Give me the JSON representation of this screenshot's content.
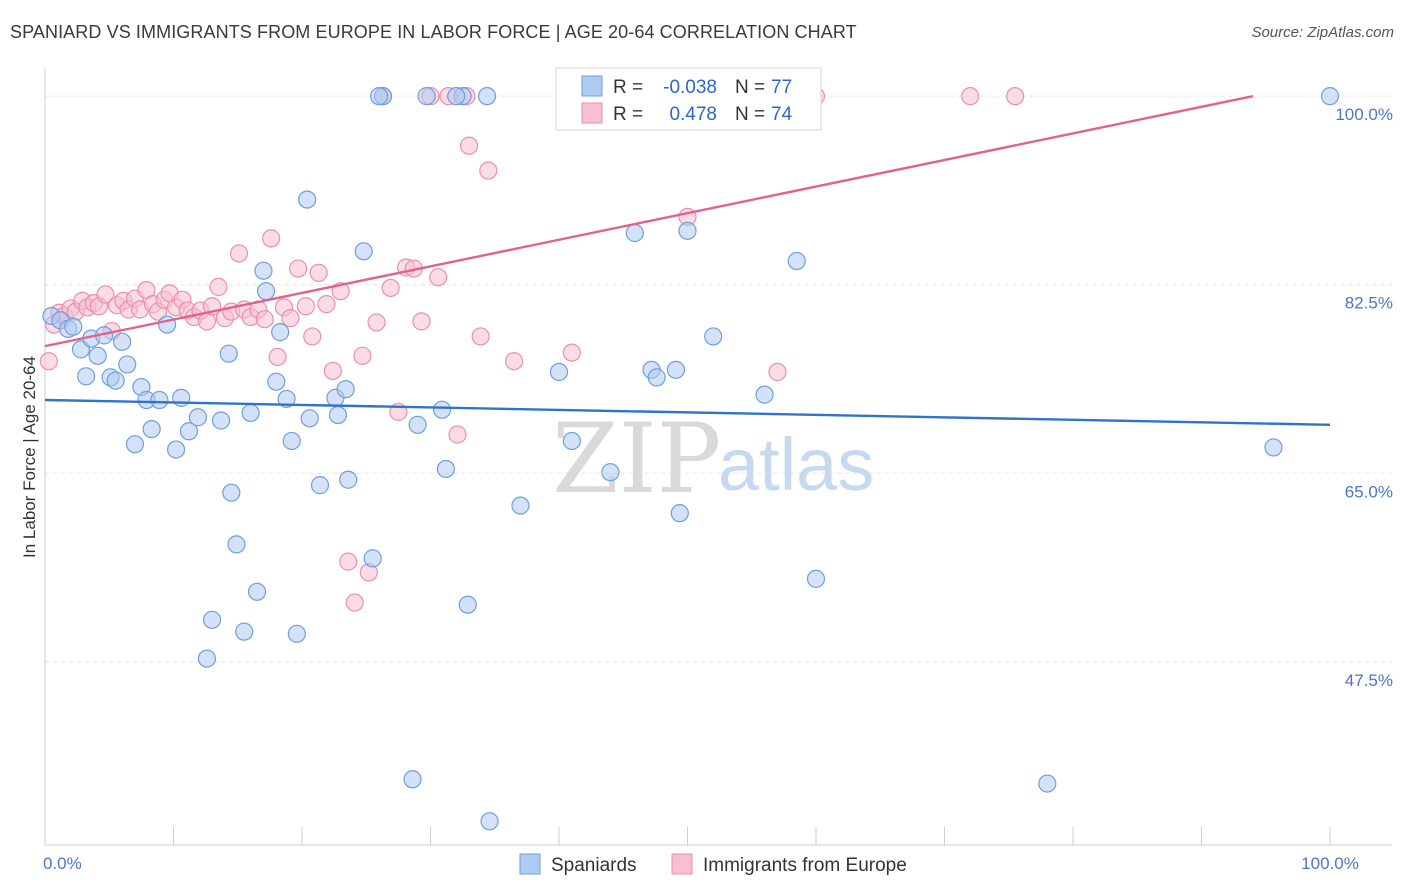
{
  "title": "SPANIARD VS IMMIGRANTS FROM EUROPE IN LABOR FORCE | AGE 20-64 CORRELATION CHART",
  "source": "Source: ZipAtlas.com",
  "watermark": {
    "zip": "ZIP",
    "atlas": "atlas"
  },
  "colors": {
    "blue_fill": "#aecbf2",
    "blue_stroke": "#6f9fdb",
    "blue_line": "#2f73d0",
    "pink_fill": "#f7bfd1",
    "pink_stroke": "#ea8fae",
    "pink_line": "#e0628d",
    "tick_label": "#4a78c4",
    "grid": "#e3e3e3"
  },
  "legend_box": {
    "rows": [
      {
        "r_label": "R =",
        "r_value": "-0.038",
        "n_label": "N =",
        "n_value": "77",
        "series": "blue"
      },
      {
        "r_label": "R =",
        "r_value": "0.478",
        "n_label": "N =",
        "n_value": "74",
        "series": "pink"
      }
    ]
  },
  "chart_data": {
    "type": "scatter",
    "ylabel": "In Labor Force | Age 20-64",
    "xlabel": "",
    "x_range": [
      0,
      100
    ],
    "y_range": [
      30.5,
      101.5
    ],
    "x_tick_labels": [
      {
        "value": 0,
        "label": "0.0%"
      },
      {
        "value": 100,
        "label": "100.0%"
      }
    ],
    "y_tick_labels": [
      {
        "value": 47.5,
        "label": "47.5%"
      },
      {
        "value": 65.0,
        "label": "65.0%"
      },
      {
        "value": 82.5,
        "label": "82.5%"
      },
      {
        "value": 100.0,
        "label": "100.0%"
      }
    ],
    "x_minor_ticks": [
      0,
      10,
      20,
      30,
      40,
      50,
      60,
      70,
      80,
      90,
      100
    ],
    "y_gridlines": [
      47.5,
      65.0,
      82.5,
      100.0
    ],
    "legend_position": "bottom-center",
    "series": [
      {
        "name": "Spaniards",
        "color": "blue",
        "trend": {
          "x": [
            0,
            100
          ],
          "y": [
            71.8,
            69.5
          ]
        },
        "points": [
          [
            0.5,
            79.6
          ],
          [
            1.2,
            79.2
          ],
          [
            1.8,
            78.4
          ],
          [
            2.2,
            78.6
          ],
          [
            2.8,
            76.5
          ],
          [
            3.2,
            74.0
          ],
          [
            3.6,
            77.5
          ],
          [
            4.1,
            75.9
          ],
          [
            4.6,
            77.8
          ],
          [
            5.1,
            73.9
          ],
          [
            5.5,
            73.6
          ],
          [
            6.0,
            77.2
          ],
          [
            6.4,
            75.1
          ],
          [
            7.0,
            67.7
          ],
          [
            7.5,
            73.0
          ],
          [
            7.9,
            71.8
          ],
          [
            8.3,
            69.1
          ],
          [
            8.9,
            71.8
          ],
          [
            9.5,
            78.8
          ],
          [
            10.2,
            67.2
          ],
          [
            10.6,
            72.0
          ],
          [
            11.2,
            68.9
          ],
          [
            11.9,
            70.2
          ],
          [
            12.6,
            47.8
          ],
          [
            13.0,
            51.4
          ],
          [
            13.7,
            69.9
          ],
          [
            14.3,
            76.1
          ],
          [
            14.5,
            63.2
          ],
          [
            14.9,
            58.4
          ],
          [
            15.5,
            50.3
          ],
          [
            16.0,
            70.6
          ],
          [
            16.5,
            54.0
          ],
          [
            17.0,
            83.8
          ],
          [
            17.2,
            81.9
          ],
          [
            18.0,
            73.5
          ],
          [
            18.3,
            78.1
          ],
          [
            18.8,
            71.9
          ],
          [
            19.2,
            68.0
          ],
          [
            19.6,
            50.1
          ],
          [
            20.4,
            90.4
          ],
          [
            20.6,
            70.1
          ],
          [
            21.4,
            63.9
          ],
          [
            22.6,
            72.0
          ],
          [
            22.8,
            70.4
          ],
          [
            23.4,
            72.8
          ],
          [
            23.6,
            64.4
          ],
          [
            24.8,
            85.6
          ],
          [
            25.5,
            57.1
          ],
          [
            26.3,
            100.0
          ],
          [
            28.6,
            36.6
          ],
          [
            29.0,
            69.5
          ],
          [
            29.7,
            100.0
          ],
          [
            30.9,
            70.9
          ],
          [
            31.2,
            65.4
          ],
          [
            32.5,
            100.0
          ],
          [
            32.9,
            52.8
          ],
          [
            34.4,
            100.0
          ],
          [
            34.6,
            32.7
          ],
          [
            37.0,
            62.0
          ],
          [
            40.0,
            74.4
          ],
          [
            41.0,
            68.0
          ],
          [
            44.0,
            65.1
          ],
          [
            45.9,
            87.3
          ],
          [
            47.2,
            74.6
          ],
          [
            47.6,
            73.9
          ],
          [
            49.1,
            74.6
          ],
          [
            49.4,
            61.3
          ],
          [
            50.0,
            87.5
          ],
          [
            52.0,
            77.7
          ],
          [
            56.0,
            72.3
          ],
          [
            58.5,
            84.7
          ],
          [
            60.0,
            55.2
          ],
          [
            78.0,
            36.2
          ],
          [
            95.6,
            67.4
          ],
          [
            100.0,
            100.0
          ],
          [
            32.0,
            100.0
          ],
          [
            26.0,
            100.0
          ]
        ]
      },
      {
        "name": "Immigrants from Europe",
        "color": "pink",
        "trend": {
          "x": [
            0,
            94
          ],
          "y": [
            76.8,
            100.0
          ]
        },
        "points": [
          [
            0.3,
            75.4
          ],
          [
            0.7,
            78.8
          ],
          [
            1.1,
            79.9
          ],
          [
            1.5,
            79.6
          ],
          [
            2.0,
            80.3
          ],
          [
            2.4,
            80.0
          ],
          [
            2.9,
            81.0
          ],
          [
            3.3,
            80.4
          ],
          [
            3.8,
            80.8
          ],
          [
            4.2,
            80.5
          ],
          [
            4.7,
            81.6
          ],
          [
            5.2,
            78.2
          ],
          [
            5.6,
            80.6
          ],
          [
            6.1,
            81.0
          ],
          [
            6.5,
            80.2
          ],
          [
            7.0,
            81.2
          ],
          [
            7.4,
            80.2
          ],
          [
            7.9,
            82.0
          ],
          [
            8.4,
            80.7
          ],
          [
            8.8,
            80.0
          ],
          [
            9.3,
            81.1
          ],
          [
            9.7,
            81.7
          ],
          [
            10.2,
            80.4
          ],
          [
            10.7,
            81.1
          ],
          [
            11.1,
            80.1
          ],
          [
            11.6,
            79.5
          ],
          [
            12.1,
            80.1
          ],
          [
            12.6,
            79.1
          ],
          [
            13.0,
            80.5
          ],
          [
            13.5,
            82.3
          ],
          [
            14.0,
            79.4
          ],
          [
            14.5,
            80.0
          ],
          [
            15.1,
            85.4
          ],
          [
            15.5,
            80.2
          ],
          [
            16.0,
            79.5
          ],
          [
            16.6,
            80.2
          ],
          [
            17.1,
            79.3
          ],
          [
            17.6,
            86.8
          ],
          [
            18.1,
            75.8
          ],
          [
            18.6,
            80.4
          ],
          [
            19.1,
            79.4
          ],
          [
            19.7,
            84.0
          ],
          [
            20.3,
            80.5
          ],
          [
            20.8,
            77.7
          ],
          [
            21.3,
            83.6
          ],
          [
            21.9,
            80.7
          ],
          [
            22.4,
            74.5
          ],
          [
            23.0,
            81.9
          ],
          [
            23.6,
            56.8
          ],
          [
            24.1,
            53.0
          ],
          [
            24.7,
            75.9
          ],
          [
            25.2,
            55.8
          ],
          [
            25.8,
            79.0
          ],
          [
            26.3,
            100.0
          ],
          [
            26.9,
            82.2
          ],
          [
            27.5,
            70.7
          ],
          [
            28.1,
            84.1
          ],
          [
            28.7,
            84.0
          ],
          [
            29.3,
            79.1
          ],
          [
            30.0,
            100.0
          ],
          [
            30.6,
            83.2
          ],
          [
            31.4,
            100.0
          ],
          [
            32.1,
            68.6
          ],
          [
            32.8,
            100.0
          ],
          [
            33.0,
            95.4
          ],
          [
            33.9,
            77.7
          ],
          [
            34.5,
            93.1
          ],
          [
            36.5,
            75.4
          ],
          [
            41.0,
            76.2
          ],
          [
            50.0,
            88.8
          ],
          [
            57.0,
            74.4
          ],
          [
            60.0,
            100.0
          ],
          [
            72.0,
            100.0
          ],
          [
            75.5,
            100.0
          ]
        ]
      }
    ]
  }
}
